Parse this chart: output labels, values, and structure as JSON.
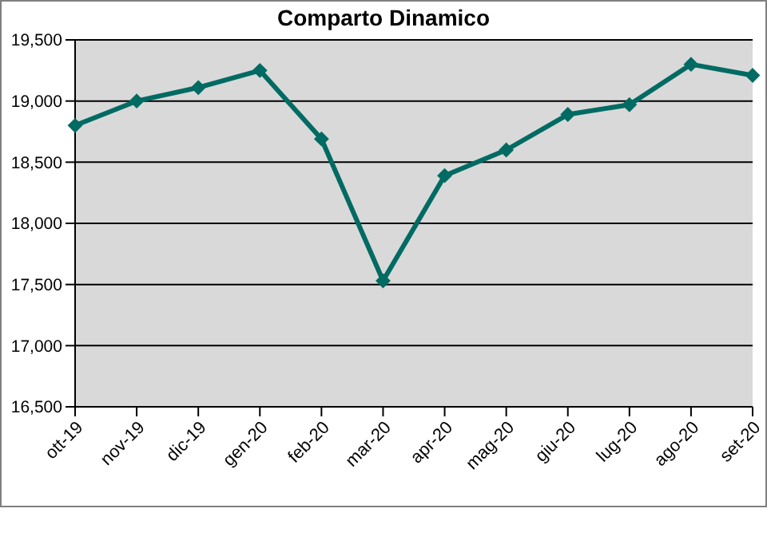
{
  "chart_data": {
    "type": "line",
    "title": "Comparto Dinamico",
    "categories": [
      "ott-19",
      "nov-19",
      "dic-19",
      "gen-20",
      "feb-20",
      "mar-20",
      "apr-20",
      "mag-20",
      "giu-20",
      "lug-20",
      "ago-20",
      "set-20"
    ],
    "series": [
      {
        "color": "#006b63",
        "values": [
          18800,
          19000,
          19110,
          19250,
          18690,
          17530,
          18390,
          18600,
          18890,
          18970,
          19300,
          19210
        ]
      }
    ],
    "ylim": [
      16500,
      19500
    ],
    "yticks": [
      {
        "value": 16500,
        "label": "16,500"
      },
      {
        "value": 17000,
        "label": "17,000"
      },
      {
        "value": 17500,
        "label": "17,500"
      },
      {
        "value": 18000,
        "label": "18,000"
      },
      {
        "value": 18500,
        "label": "18,500"
      },
      {
        "value": 19000,
        "label": "19,000"
      },
      {
        "value": 19500,
        "label": "19,500"
      }
    ],
    "grid": "y",
    "marker": "diamond",
    "line_style": "solid"
  }
}
